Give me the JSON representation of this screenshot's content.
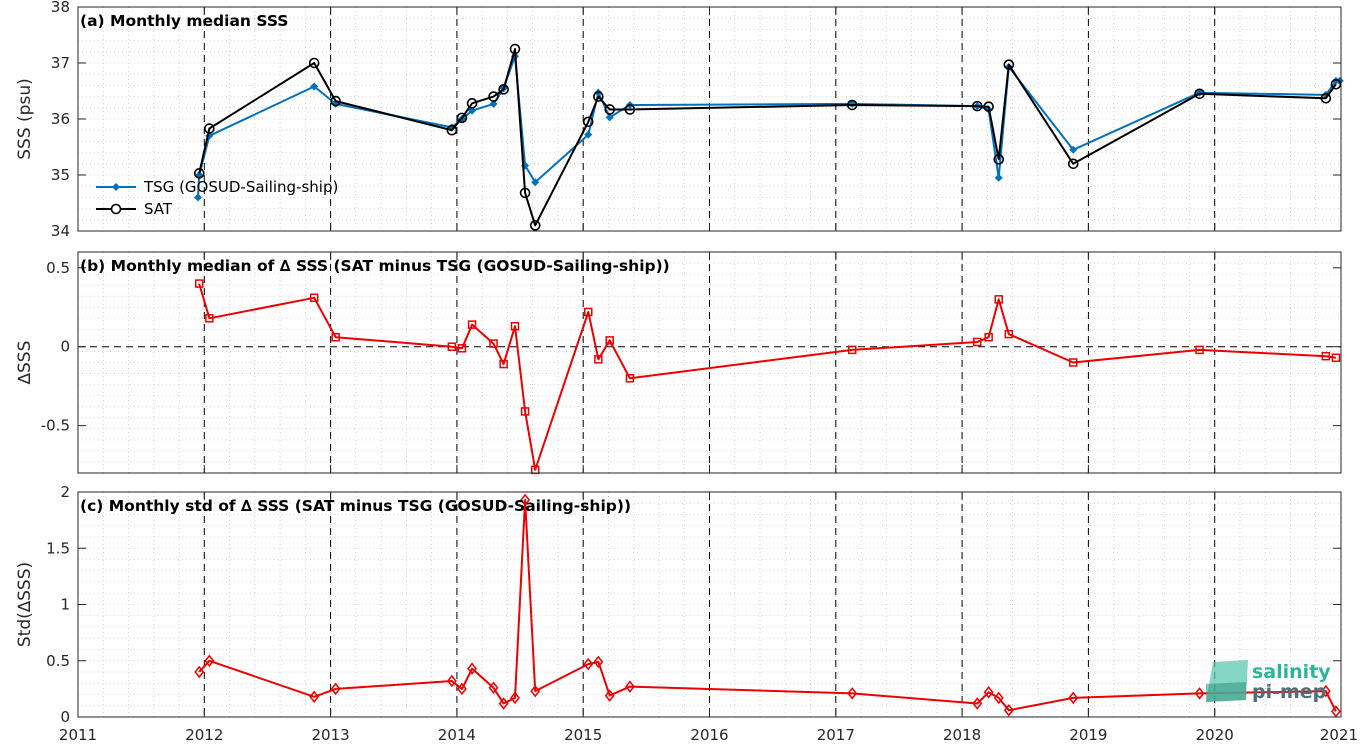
{
  "colors": {
    "tsg": "#0072BD",
    "sat": "#000000",
    "delta": "#EE0000",
    "axis": "#262626",
    "logo_top": "#2bb59a",
    "logo_bottom": "#4d6e7a"
  },
  "x_axis": {
    "min": 2011,
    "max": 2021,
    "ticks": [
      "2011",
      "2012",
      "2013",
      "2014",
      "2015",
      "2016",
      "2017",
      "2018",
      "2019",
      "2020",
      "2021"
    ],
    "vlines": [
      2012,
      2013,
      2014,
      2015,
      2016,
      2017,
      2018,
      2019,
      2020
    ]
  },
  "logo": {
    "line1": "salinity",
    "line2": "pi-mep"
  },
  "chart_data": [
    {
      "type": "line",
      "title": "(a) Monthly median SSS",
      "ylabel": "SSS (psu)",
      "ylim": [
        34,
        38
      ],
      "yticks": [
        "34",
        "35",
        "36",
        "37",
        "38"
      ],
      "ytick_values": [
        34,
        35,
        36,
        37,
        38
      ],
      "grid": "minor-dotted",
      "legend_position": "left",
      "series": [
        {
          "name": "TSG (GOSUD-Sailing-ship)",
          "marker": "diamond-filled",
          "x": [
            2011.95,
            2011.96,
            2012.04,
            2012.87,
            2013.04,
            2013.96,
            2014.04,
            2014.12,
            2014.29,
            2014.37,
            2014.46,
            2014.54,
            2014.62,
            2015.04,
            2015.12,
            2015.21,
            2015.37,
            2017.13,
            2018.12,
            2018.21,
            2018.29,
            2018.37,
            2018.88,
            2019.88,
            2020.88,
            2020.96,
            2020.99
          ],
          "y": [
            34.6,
            35.0,
            35.7,
            36.58,
            36.27,
            35.85,
            36.0,
            36.15,
            36.27,
            36.55,
            37.12,
            35.17,
            34.87,
            35.72,
            36.47,
            36.03,
            36.25,
            36.27,
            36.23,
            36.17,
            34.95,
            36.93,
            35.45,
            36.47,
            36.43,
            36.68,
            36.68
          ]
        },
        {
          "name": "SAT",
          "marker": "circle-open",
          "x": [
            2011.96,
            2012.04,
            2012.87,
            2013.04,
            2013.96,
            2014.04,
            2014.12,
            2014.29,
            2014.37,
            2014.46,
            2014.54,
            2014.62,
            2015.04,
            2015.12,
            2015.21,
            2015.37,
            2017.13,
            2018.12,
            2018.21,
            2018.29,
            2018.37,
            2018.88,
            2019.88,
            2020.88,
            2020.96
          ],
          "y": [
            35.03,
            35.83,
            37.0,
            36.32,
            35.8,
            36.02,
            36.28,
            36.4,
            36.53,
            37.25,
            34.68,
            34.1,
            35.95,
            36.4,
            36.17,
            36.17,
            36.25,
            36.23,
            36.22,
            35.28,
            36.97,
            35.2,
            36.45,
            36.37,
            36.62
          ]
        }
      ]
    },
    {
      "type": "line",
      "title": "(b) Monthly median of ∆ SSS (SAT minus TSG (GOSUD-Sailing-ship))",
      "ylabel": "∆SSS",
      "ylim": [
        -0.8,
        0.6
      ],
      "yticks": [
        "-0.5",
        "0",
        "0.5"
      ],
      "ytick_values": [
        -0.5,
        0,
        0.5
      ],
      "zero_line": true,
      "grid": "minor-dotted",
      "series": [
        {
          "marker": "square-open",
          "x": [
            2011.96,
            2012.04,
            2012.87,
            2013.04,
            2013.96,
            2014.04,
            2014.12,
            2014.29,
            2014.37,
            2014.46,
            2014.54,
            2014.62,
            2015.04,
            2015.12,
            2015.21,
            2015.37,
            2017.13,
            2018.12,
            2018.21,
            2018.29,
            2018.37,
            2018.88,
            2019.88,
            2020.88,
            2020.96
          ],
          "y": [
            0.4,
            0.18,
            0.31,
            0.06,
            0.0,
            -0.01,
            0.14,
            0.02,
            -0.11,
            0.13,
            -0.41,
            -0.78,
            0.22,
            -0.08,
            0.04,
            -0.2,
            -0.02,
            0.03,
            0.06,
            0.3,
            0.08,
            -0.1,
            -0.02,
            -0.06,
            -0.07
          ]
        }
      ]
    },
    {
      "type": "line",
      "title": "(c) Monthly std of ∆ SSS (SAT minus TSG (GOSUD-Sailing-ship))",
      "ylabel": "Std(∆SSS)",
      "ylim": [
        0,
        2
      ],
      "yticks": [
        "0",
        "0.5",
        "1",
        "1.5",
        "2"
      ],
      "ytick_values": [
        0,
        0.5,
        1,
        1.5,
        2
      ],
      "grid": "minor-dotted",
      "series": [
        {
          "marker": "diamond-open",
          "x": [
            2011.96,
            2012.04,
            2012.87,
            2013.04,
            2013.96,
            2014.04,
            2014.12,
            2014.29,
            2014.37,
            2014.46,
            2014.54,
            2014.62,
            2015.04,
            2015.12,
            2015.21,
            2015.37,
            2017.13,
            2018.12,
            2018.21,
            2018.29,
            2018.37,
            2018.88,
            2019.88,
            2020.88,
            2020.96
          ],
          "y": [
            0.4,
            0.5,
            0.18,
            0.25,
            0.32,
            0.25,
            0.43,
            0.26,
            0.12,
            0.17,
            1.93,
            0.23,
            0.47,
            0.49,
            0.19,
            0.27,
            0.21,
            0.12,
            0.22,
            0.17,
            0.06,
            0.17,
            0.21,
            0.23,
            0.05
          ]
        }
      ]
    }
  ]
}
